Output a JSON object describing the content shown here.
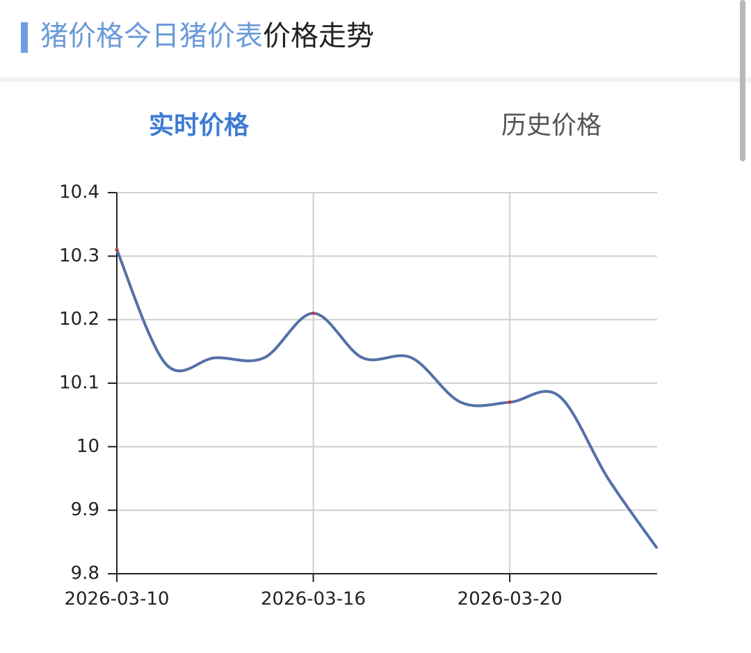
{
  "header": {
    "title_link": "猪价格今日猪价表",
    "title_suffix": "价格走势"
  },
  "tabs": [
    "实时价格",
    "历史价格"
  ],
  "chart_data": {
    "type": "line",
    "categories": [
      "2026-03-10",
      null,
      null,
      null,
      "2026-03-16",
      null,
      null,
      null,
      "2026-03-20",
      null,
      null,
      null
    ],
    "series": [
      {
        "name": null,
        "color": "#5470a8",
        "values": [
          10.31,
          10.13,
          10.14,
          10.14,
          10.21,
          10.14,
          10.14,
          10.07,
          10.07,
          10.08,
          9.95,
          9.84
        ]
      }
    ],
    "ylim": [
      9.8,
      10.4
    ],
    "yticks": [
      9.8,
      9.9,
      10,
      10.1,
      10.2,
      10.3,
      10.4
    ],
    "grid": true
  }
}
